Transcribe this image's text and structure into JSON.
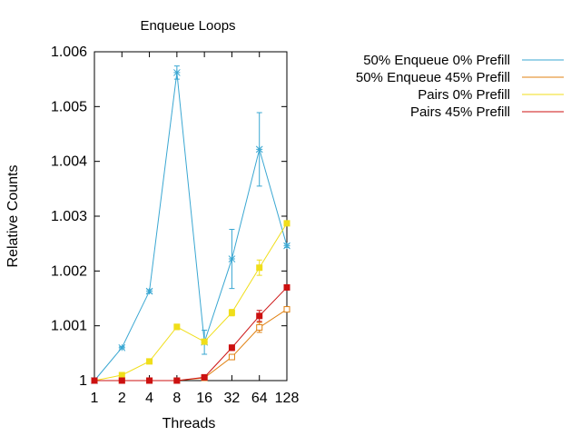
{
  "chart_data": {
    "type": "line",
    "title": "Enqueue Loops",
    "xlabel": "Threads",
    "ylabel": "Relative Counts",
    "x_scale": "log2",
    "categories": [
      "1",
      "2",
      "4",
      "8",
      "16",
      "32",
      "64",
      "128"
    ],
    "x": [
      1,
      2,
      4,
      8,
      16,
      32,
      64,
      128
    ],
    "ylim": [
      1,
      1.006
    ],
    "yticks": [
      "1",
      "1.001",
      "1.002",
      "1.003",
      "1.004",
      "1.005",
      "1.006"
    ],
    "ytick_values": [
      1,
      1.001,
      1.002,
      1.003,
      1.004,
      1.005,
      1.006
    ],
    "legend_position": "top-right, outside plot",
    "grid": false,
    "series": [
      {
        "name": "50% Enqueue 0% Prefill",
        "color": "#3aa7d2",
        "marker": "asterisk",
        "values": [
          1.0,
          1.0006,
          1.00163,
          1.00562,
          1.0007,
          1.00222,
          1.00422,
          1.00246
        ],
        "errors": [
          0.0,
          2e-05,
          3e-05,
          0.00012,
          0.00022,
          0.00054,
          0.00067,
          3e-05
        ]
      },
      {
        "name": "50% Enqueue 45% Prefill",
        "color": "#e08010",
        "marker": "open-square",
        "values": [
          1.0,
          1.0,
          1.0,
          1.0,
          1.00005,
          1.00043,
          1.00097,
          1.0013
        ],
        "errors": [
          0.0,
          0.0,
          0.0,
          0.0,
          2e-05,
          3e-05,
          9e-05,
          3e-05
        ]
      },
      {
        "name": "Pairs 0% Prefill",
        "color": "#f0de1a",
        "marker": "filled-square",
        "values": [
          1.0,
          1.0001,
          1.00035,
          1.00098,
          1.00071,
          1.00124,
          1.00206,
          1.00287
        ],
        "errors": [
          0.0,
          2e-05,
          2e-05,
          5e-05,
          4e-05,
          6e-05,
          0.00014,
          4e-05
        ]
      },
      {
        "name": "Pairs 45% Prefill",
        "color": "#cc1111",
        "marker": "filled-square",
        "values": [
          1.0,
          1.0,
          1.0,
          1.0,
          1.00006,
          1.0006,
          1.00118,
          1.0017
        ],
        "errors": [
          0.0,
          0.0,
          0.0,
          0.0,
          2e-05,
          5e-05,
          0.0001,
          3e-05
        ]
      }
    ]
  }
}
